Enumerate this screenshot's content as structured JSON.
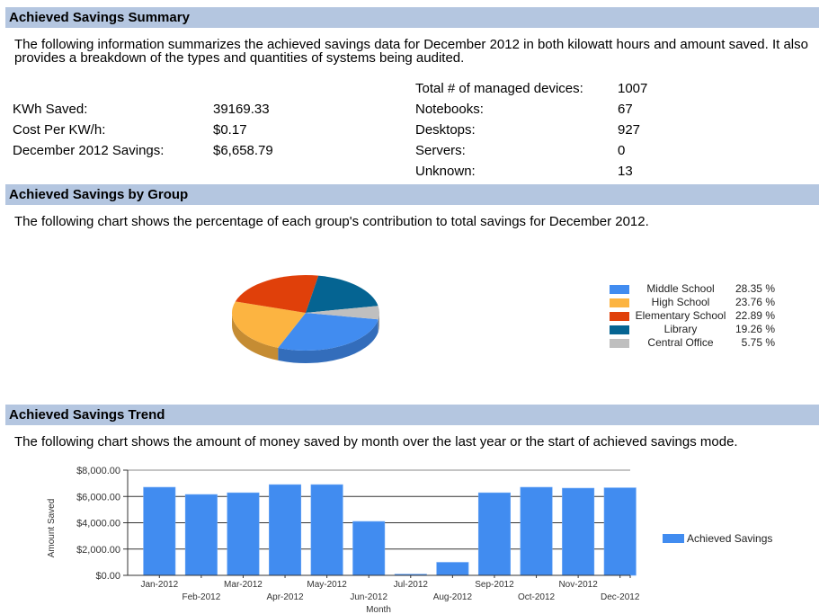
{
  "summary": {
    "header": "Achieved Savings Summary",
    "description": "The following information summarizes the achieved savings data for December 2012 in both kilowatt hours and amount saved. It also provides a breakdown of the types and quantities of systems being audited.",
    "savings": [
      {
        "label": "KWh Saved:",
        "value": "39169.33"
      },
      {
        "label": "Cost Per KW/h:",
        "value": "$0.17"
      },
      {
        "label": "December 2012 Savings:",
        "value": "$6,658.79"
      }
    ],
    "devices": [
      {
        "label": "Total # of managed devices:",
        "value": "1007"
      },
      {
        "label": "Notebooks:",
        "value": "67"
      },
      {
        "label": "Desktops:",
        "value": "927"
      },
      {
        "label": "Servers:",
        "value": "0"
      },
      {
        "label": "Unknown:",
        "value": "13"
      }
    ]
  },
  "by_group": {
    "header": "Achieved Savings by Group",
    "description": "The following chart shows the percentage of each group's contribution to total savings for December 2012."
  },
  "trend": {
    "header": "Achieved Savings Trend",
    "description": "The following chart shows the amount of money saved by month over the last year or the start of achieved savings mode."
  },
  "chart_data": [
    {
      "type": "pie",
      "title": "",
      "labels": [
        "Middle School",
        "High School",
        "Elementary School",
        "Library",
        "Central Office"
      ],
      "values": [
        28.35,
        23.76,
        22.89,
        19.26,
        5.75
      ],
      "value_labels": [
        "28.35 %",
        "23.76 %",
        "22.89 %",
        "19.26 %",
        "5.75 %"
      ],
      "colors": [
        "#418cf0",
        "#fcb441",
        "#e0400a",
        "#056492",
        "#bfbfbf"
      ],
      "legend": "right",
      "style": "3d"
    },
    {
      "type": "bar",
      "title": "",
      "categories": [
        "Jan-2012",
        "Feb-2012",
        "Mar-2012",
        "Apr-2012",
        "May-2012",
        "Jun-2012",
        "Jul-2012",
        "Aug-2012",
        "Sep-2012",
        "Oct-2012",
        "Nov-2012",
        "Dec-2012"
      ],
      "series": [
        {
          "name": "Achieved Savings",
          "color": "#418cf0",
          "values": [
            6700,
            6150,
            6280,
            6900,
            6900,
            4100,
            90,
            990,
            6280,
            6700,
            6630,
            6658.79
          ]
        }
      ],
      "xlabel": "Month",
      "ylabel": "Amount Saved",
      "ylim": [
        0,
        8000
      ],
      "yticks": [
        0,
        2000,
        4000,
        6000,
        8000
      ],
      "ytick_labels": [
        "$0.00",
        "$2,000.00",
        "$4,000.00",
        "$6,000.00",
        "$8,000.00"
      ],
      "grid": true,
      "legend": "right"
    }
  ]
}
